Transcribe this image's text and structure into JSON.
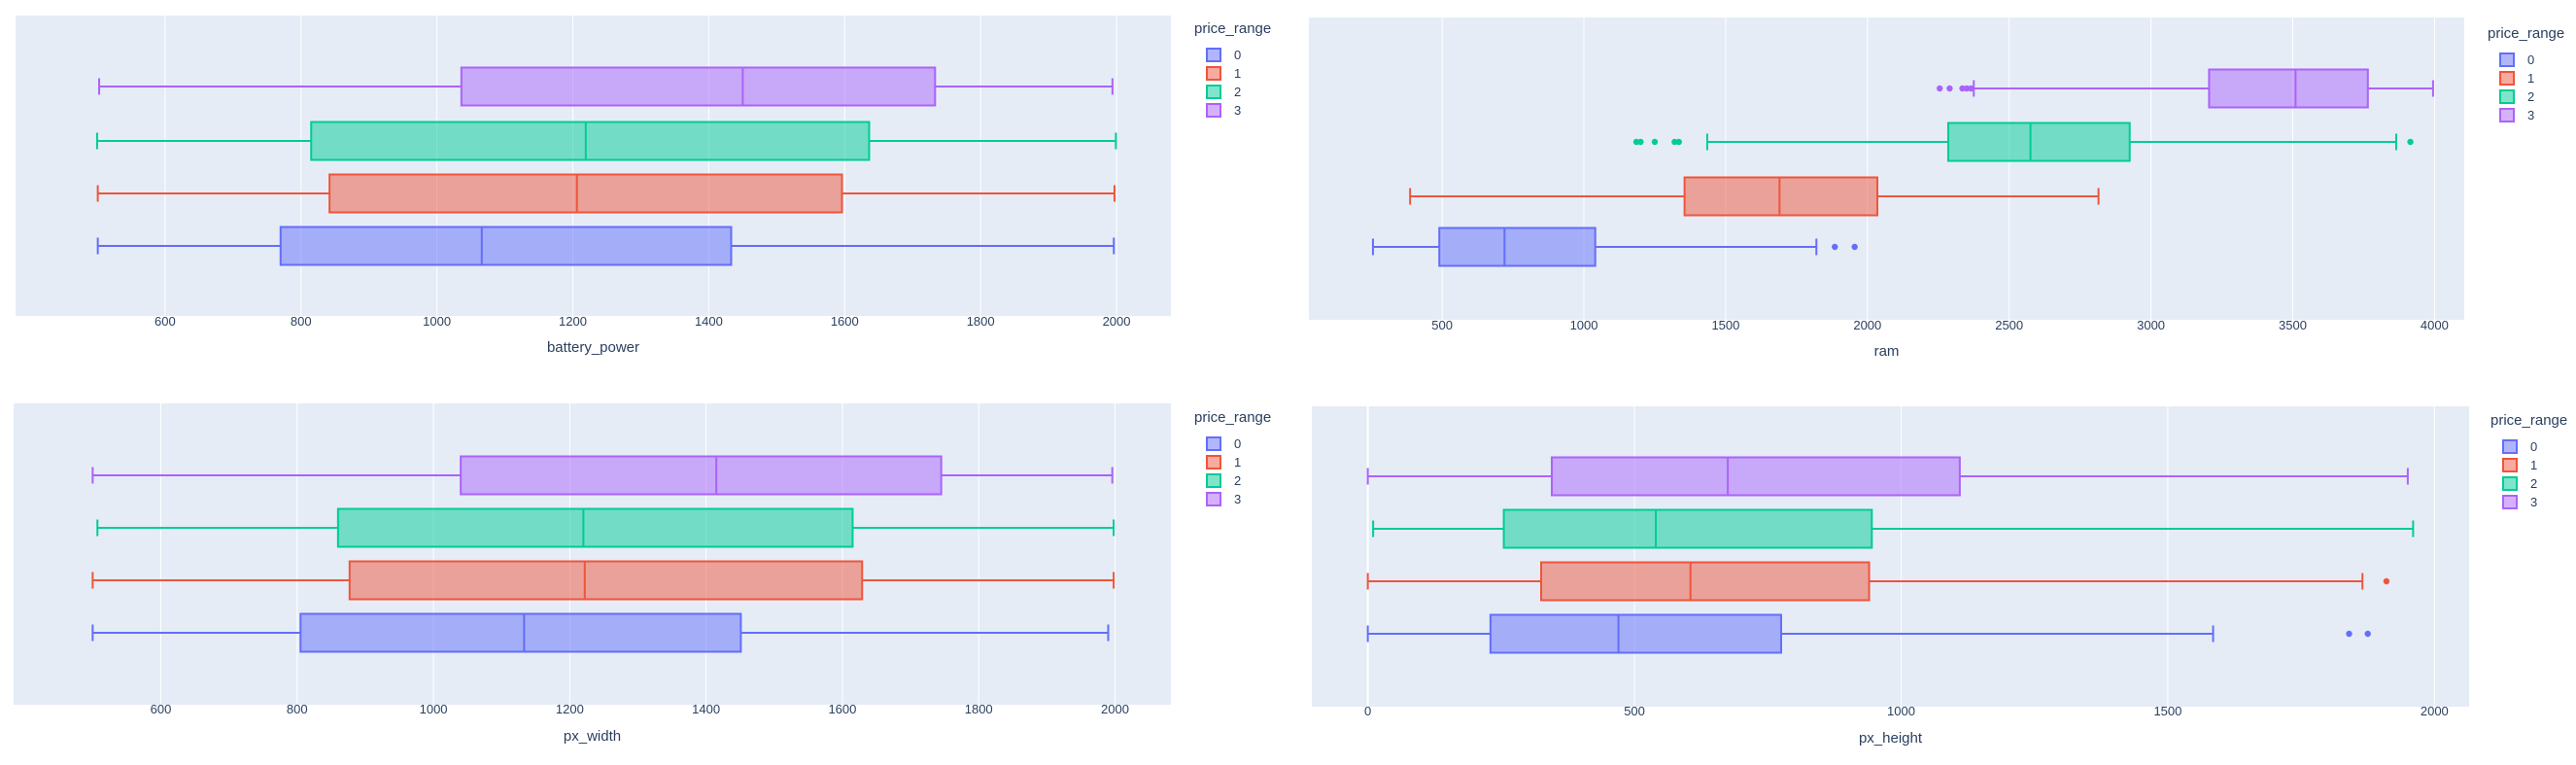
{
  "legend_title": "price_range",
  "colors": {
    "0": "#636efa",
    "1": "#ef553b",
    "2": "#00cc96",
    "3": "#ab63fa",
    "plot_bg": "#e5ecf6",
    "grid": "#ffffff",
    "text": "#2a3f5f"
  },
  "chart_data": [
    {
      "type": "box",
      "orientation": "horizontal",
      "xlabel": "battery_power",
      "xlim": [
        380,
        2080
      ],
      "xticks": [
        600,
        800,
        1000,
        1200,
        1400,
        1600,
        1800,
        2000
      ],
      "legend": [
        "0",
        "1",
        "2",
        "3"
      ],
      "series": [
        {
          "name": "0",
          "lowerfence": 501,
          "q1": 770,
          "median": 1066,
          "q3": 1433,
          "upperfence": 1996,
          "outliers": []
        },
        {
          "name": "1",
          "lowerfence": 501,
          "q1": 842,
          "median": 1206,
          "q3": 1596,
          "upperfence": 1997,
          "outliers": []
        },
        {
          "name": "2",
          "lowerfence": 500,
          "q1": 815,
          "median": 1219,
          "q3": 1636,
          "upperfence": 1999,
          "outliers": []
        },
        {
          "name": "3",
          "lowerfence": 503,
          "q1": 1036,
          "median": 1450,
          "q3": 1733,
          "upperfence": 1994,
          "outliers": []
        }
      ]
    },
    {
      "type": "box",
      "orientation": "horizontal",
      "xlabel": "ram",
      "xlim": [
        30,
        4105
      ],
      "xticks": [
        500,
        1000,
        1500,
        2000,
        2500,
        3000,
        3500,
        4000
      ],
      "legend": [
        "0",
        "1",
        "2",
        "3"
      ],
      "series": [
        {
          "name": "0",
          "lowerfence": 256,
          "q1": 490,
          "median": 720,
          "q3": 1040,
          "upperfence": 1820,
          "outliers": [
            1885,
            1955
          ]
        },
        {
          "name": "1",
          "lowerfence": 387,
          "q1": 1355,
          "median": 1690,
          "q3": 2035,
          "upperfence": 2815,
          "outliers": []
        },
        {
          "name": "2",
          "lowerfence": 1435,
          "q1": 2285,
          "median": 2575,
          "q3": 2925,
          "upperfence": 3865,
          "outliers": [
            1185,
            1200,
            1250,
            1320,
            1335,
            3915
          ]
        },
        {
          "name": "3",
          "lowerfence": 2375,
          "q1": 3205,
          "median": 3510,
          "q3": 3765,
          "upperfence": 3995,
          "outliers": [
            2255,
            2290,
            2335,
            2350,
            2365
          ]
        }
      ]
    },
    {
      "type": "box",
      "orientation": "horizontal",
      "xlabel": "px_width",
      "xlim": [
        384,
        2082
      ],
      "xticks": [
        600,
        800,
        1000,
        1200,
        1400,
        1600,
        1800,
        2000
      ],
      "legend": [
        "0",
        "1",
        "2",
        "3"
      ],
      "series": [
        {
          "name": "0",
          "lowerfence": 500,
          "q1": 805,
          "median": 1133,
          "q3": 1451,
          "upperfence": 1990,
          "outliers": []
        },
        {
          "name": "1",
          "lowerfence": 500,
          "q1": 877,
          "median": 1222,
          "q3": 1629,
          "upperfence": 1998,
          "outliers": []
        },
        {
          "name": "2",
          "lowerfence": 507,
          "q1": 860,
          "median": 1220,
          "q3": 1615,
          "upperfence": 1998,
          "outliers": []
        },
        {
          "name": "3",
          "lowerfence": 500,
          "q1": 1040,
          "median": 1415,
          "q3": 1745,
          "upperfence": 1996,
          "outliers": []
        }
      ]
    },
    {
      "type": "box",
      "orientation": "horizontal",
      "xlabel": "px_height",
      "xlim": [
        -105,
        2065
      ],
      "xticks": [
        0,
        500,
        1000,
        1500,
        2000
      ],
      "legend": [
        "0",
        "1",
        "2",
        "3"
      ],
      "series": [
        {
          "name": "0",
          "lowerfence": 0,
          "q1": 230,
          "median": 470,
          "q3": 775,
          "upperfence": 1585,
          "outliers": [
            1840,
            1875
          ]
        },
        {
          "name": "1",
          "lowerfence": 0,
          "q1": 325,
          "median": 605,
          "q3": 940,
          "upperfence": 1865,
          "outliers": [
            1910
          ]
        },
        {
          "name": "2",
          "lowerfence": 10,
          "q1": 255,
          "median": 540,
          "q3": 945,
          "upperfence": 1960,
          "outliers": []
        },
        {
          "name": "3",
          "lowerfence": 0,
          "q1": 345,
          "median": 675,
          "q3": 1110,
          "upperfence": 1950,
          "outliers": []
        }
      ]
    }
  ]
}
